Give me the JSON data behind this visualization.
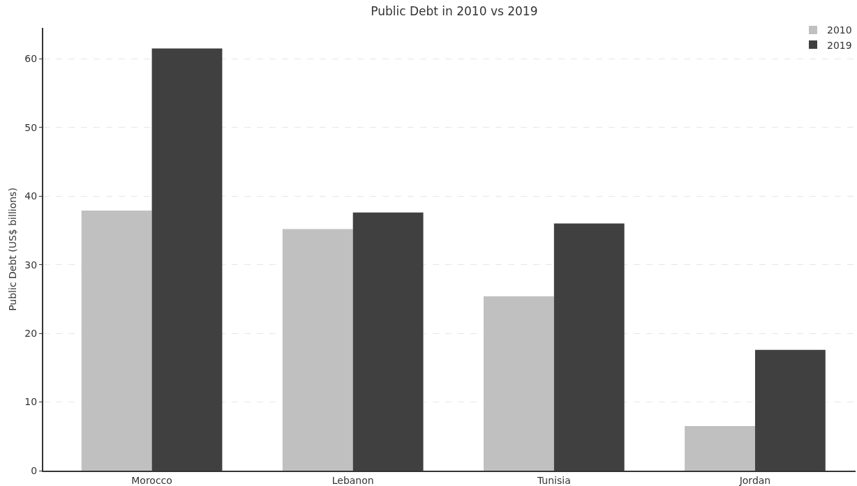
{
  "chart_data": {
    "type": "bar",
    "title": "Public Debt in 2010 vs 2019",
    "ylabel": "Public Debt (US$ billions)",
    "categories": [
      "Morocco",
      "Lebanon",
      "Tunisia",
      "Jordan"
    ],
    "series": [
      {
        "name": "2010",
        "color": "#c0c0c0",
        "values": [
          37.9,
          35.2,
          25.4,
          6.5
        ]
      },
      {
        "name": "2019",
        "color": "#404040",
        "values": [
          61.5,
          37.6,
          36.0,
          17.6
        ]
      }
    ],
    "ylim": [
      0,
      64.5
    ],
    "yticks": [
      0,
      10,
      20,
      30,
      40,
      50,
      60
    ],
    "grid": "y",
    "legend": "top right"
  }
}
